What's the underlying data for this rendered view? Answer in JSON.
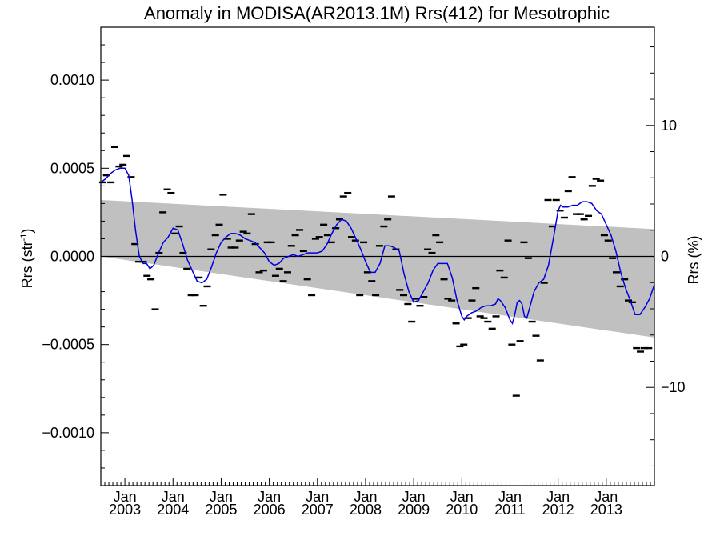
{
  "chart_data": {
    "type": "line",
    "title": "Anomaly in MODISA(AR2013.1M) Rrs(412) for Mesotrophic",
    "ylabel_left": "Rrs (str",
    "ylabel_left_sup": "-1",
    "ylabel_left_close": ")",
    "ylabel_right": "Rrs (%)",
    "x_range": [
      2002.5,
      2014.0
    ],
    "y_range": [
      -0.0013,
      0.0013
    ],
    "y2_range": [
      -17.5,
      17.5
    ],
    "y_ticks": [
      -0.001,
      -0.0005,
      0.0,
      0.0005,
      0.001
    ],
    "y_tick_labels": [
      "−0.0010",
      "−0.0005",
      "0.0000",
      "0.0005",
      "0.0010"
    ],
    "y2_ticks": [
      -10,
      0,
      10
    ],
    "y2_tick_labels": [
      "−10",
      "0",
      "10"
    ],
    "x_ticks": [
      {
        "x": 2003.0,
        "month": "Jan",
        "year": "2003"
      },
      {
        "x": 2004.0,
        "month": "Jan",
        "year": "2004"
      },
      {
        "x": 2005.0,
        "month": "Jan",
        "year": "2005"
      },
      {
        "x": 2006.0,
        "month": "Jan",
        "year": "2006"
      },
      {
        "x": 2007.0,
        "month": "Jan",
        "year": "2007"
      },
      {
        "x": 2008.0,
        "month": "Jan",
        "year": "2008"
      },
      {
        "x": 2009.0,
        "month": "Jan",
        "year": "2009"
      },
      {
        "x": 2010.0,
        "month": "Jan",
        "year": "2010"
      },
      {
        "x": 2011.0,
        "month": "Jan",
        "year": "2011"
      },
      {
        "x": 2012.0,
        "month": "Jan",
        "year": "2012"
      },
      {
        "x": 2013.0,
        "month": "Jan",
        "year": "2013"
      }
    ],
    "zero_line": 0.0,
    "band": {
      "color": "#c0c0c0",
      "upper": [
        [
          2002.5,
          0.00032
        ],
        [
          2014.0,
          0.000155
        ]
      ],
      "lower": [
        [
          2002.5,
          0.0
        ],
        [
          2014.0,
          -0.00046
        ]
      ]
    },
    "series": [
      {
        "type": "scatter",
        "marker": "dash",
        "color": "#000000",
        "points": [
          [
            2002.54,
            0.00042
          ],
          [
            2002.62,
            0.00046
          ],
          [
            2002.71,
            0.00042
          ],
          [
            2002.79,
            0.00062
          ],
          [
            2002.88,
            0.00051
          ],
          [
            2002.96,
            0.00052
          ],
          [
            2003.04,
            0.00057
          ],
          [
            2003.13,
            0.00045
          ],
          [
            2003.21,
            7e-05
          ],
          [
            2003.29,
            -3e-05
          ],
          [
            2003.38,
            -3e-05
          ],
          [
            2003.46,
            -0.00011
          ],
          [
            2003.54,
            -0.00013
          ],
          [
            2003.63,
            -0.0003
          ],
          [
            2003.71,
            2e-05
          ],
          [
            2003.79,
            0.00025
          ],
          [
            2003.88,
            0.00038
          ],
          [
            2003.96,
            0.00036
          ],
          [
            2004.04,
            0.00013
          ],
          [
            2004.13,
            0.00017
          ],
          [
            2004.21,
            2e-05
          ],
          [
            2004.29,
            -7e-05
          ],
          [
            2004.38,
            -0.00022
          ],
          [
            2004.46,
            -0.00022
          ],
          [
            2004.54,
            -0.00012
          ],
          [
            2004.63,
            -0.00028
          ],
          [
            2004.71,
            -0.00017
          ],
          [
            2004.79,
            4e-05
          ],
          [
            2004.88,
            0.00012
          ],
          [
            2004.96,
            0.00018
          ],
          [
            2005.04,
            0.00035
          ],
          [
            2005.13,
            0.0001
          ],
          [
            2005.21,
            5e-05
          ],
          [
            2005.29,
            5e-05
          ],
          [
            2005.38,
            9e-05
          ],
          [
            2005.46,
            0.00014
          ],
          [
            2005.54,
            0.00013
          ],
          [
            2005.63,
            0.00024
          ],
          [
            2005.71,
            7e-05
          ],
          [
            2005.79,
            -9e-05
          ],
          [
            2005.88,
            -8e-05
          ],
          [
            2005.96,
            8e-05
          ],
          [
            2006.04,
            8e-05
          ],
          [
            2006.13,
            -0.00011
          ],
          [
            2006.21,
            -7e-05
          ],
          [
            2006.29,
            -0.00014
          ],
          [
            2006.38,
            -9e-05
          ],
          [
            2006.46,
            6e-05
          ],
          [
            2006.54,
            0.00012
          ],
          [
            2006.63,
            0.00015
          ],
          [
            2006.71,
            3e-05
          ],
          [
            2006.79,
            -0.00013
          ],
          [
            2006.88,
            -0.00022
          ],
          [
            2006.96,
            0.0001
          ],
          [
            2007.04,
            0.00011
          ],
          [
            2007.13,
            0.00018
          ],
          [
            2007.21,
            0.00012
          ],
          [
            2007.29,
            8e-05
          ],
          [
            2007.38,
            0.00016
          ],
          [
            2007.46,
            0.00021
          ],
          [
            2007.54,
            0.00034
          ],
          [
            2007.63,
            0.00036
          ],
          [
            2007.71,
            0.00011
          ],
          [
            2007.79,
            9e-05
          ],
          [
            2007.88,
            -0.00022
          ],
          [
            2007.96,
            8e-05
          ],
          [
            2008.04,
            -9e-05
          ],
          [
            2008.13,
            -0.00014
          ],
          [
            2008.21,
            -0.00022
          ],
          [
            2008.29,
            6e-05
          ],
          [
            2008.38,
            0.00017
          ],
          [
            2008.46,
            0.00021
          ],
          [
            2008.54,
            0.00034
          ],
          [
            2008.63,
            4e-05
          ],
          [
            2008.71,
            -0.00019
          ],
          [
            2008.79,
            -0.00022
          ],
          [
            2008.88,
            -0.00027
          ],
          [
            2008.96,
            -0.00037
          ],
          [
            2009.04,
            -0.00024
          ],
          [
            2009.13,
            -0.00028
          ],
          [
            2009.21,
            -0.00023
          ],
          [
            2009.29,
            4e-05
          ],
          [
            2009.38,
            2e-05
          ],
          [
            2009.46,
            0.00012
          ],
          [
            2009.54,
            8e-05
          ],
          [
            2009.63,
            -0.00013
          ],
          [
            2009.71,
            -0.00024
          ],
          [
            2009.79,
            -0.00025
          ],
          [
            2009.88,
            -0.00038
          ],
          [
            2009.96,
            -0.00051
          ],
          [
            2010.04,
            -0.0005
          ],
          [
            2010.13,
            -0.00035
          ],
          [
            2010.21,
            -0.00025
          ],
          [
            2010.29,
            -0.00018
          ],
          [
            2010.38,
            -0.00034
          ],
          [
            2010.46,
            -0.00035
          ],
          [
            2010.54,
            -0.00037
          ],
          [
            2010.63,
            -0.00041
          ],
          [
            2010.71,
            -0.00034
          ],
          [
            2010.79,
            -8e-05
          ],
          [
            2010.88,
            -0.00012
          ],
          [
            2010.96,
            9e-05
          ],
          [
            2011.04,
            -0.0005
          ],
          [
            2011.13,
            -0.00079
          ],
          [
            2011.21,
            -0.00048
          ],
          [
            2011.29,
            8e-05
          ],
          [
            2011.38,
            -1e-05
          ],
          [
            2011.46,
            -0.00037
          ],
          [
            2011.54,
            -0.00045
          ],
          [
            2011.63,
            -0.00059
          ],
          [
            2011.71,
            -0.00015
          ],
          [
            2011.79,
            0.00032
          ],
          [
            2011.88,
            0.00017
          ],
          [
            2011.96,
            0.00032
          ],
          [
            2012.04,
            0.00026
          ],
          [
            2012.13,
            0.00022
          ],
          [
            2012.21,
            0.00037
          ],
          [
            2012.29,
            0.00045
          ],
          [
            2012.38,
            0.00024
          ],
          [
            2012.46,
            0.00024
          ],
          [
            2012.54,
            0.00021
          ],
          [
            2012.63,
            0.00023
          ],
          [
            2012.71,
            0.0004
          ],
          [
            2012.79,
            0.00044
          ],
          [
            2012.88,
            0.00043
          ],
          [
            2012.96,
            0.00012
          ],
          [
            2013.04,
            9e-05
          ],
          [
            2013.13,
            -1e-05
          ],
          [
            2013.21,
            -9e-05
          ],
          [
            2013.29,
            -0.00017
          ],
          [
            2013.38,
            -0.00013
          ],
          [
            2013.46,
            -0.00025
          ],
          [
            2013.54,
            -0.00026
          ],
          [
            2013.63,
            -0.00052
          ],
          [
            2013.71,
            -0.00054
          ],
          [
            2013.79,
            -0.00052
          ],
          [
            2013.88,
            -0.00052
          ]
        ]
      },
      {
        "type": "line",
        "color": "#0000dd",
        "points": [
          [
            2002.5,
            0.00042
          ],
          [
            2002.6,
            0.00044
          ],
          [
            2002.7,
            0.00047
          ],
          [
            2002.8,
            0.00049
          ],
          [
            2002.9,
            0.0005
          ],
          [
            2003.0,
            0.0005
          ],
          [
            2003.08,
            0.00046
          ],
          [
            2003.15,
            0.00032
          ],
          [
            2003.22,
            0.00015
          ],
          [
            2003.3,
            0.0
          ],
          [
            2003.38,
            -4e-05
          ],
          [
            2003.45,
            -4e-05
          ],
          [
            2003.52,
            -7e-05
          ],
          [
            2003.6,
            -5e-05
          ],
          [
            2003.7,
            2e-05
          ],
          [
            2003.8,
            8e-05
          ],
          [
            2003.9,
            0.00011
          ],
          [
            2004.0,
            0.00016
          ],
          [
            2004.1,
            0.00015
          ],
          [
            2004.2,
            7e-05
          ],
          [
            2004.3,
            -2e-05
          ],
          [
            2004.4,
            -8e-05
          ],
          [
            2004.5,
            -0.00014
          ],
          [
            2004.6,
            -0.00015
          ],
          [
            2004.7,
            -0.00013
          ],
          [
            2004.8,
            -6e-05
          ],
          [
            2004.9,
            2e-05
          ],
          [
            2005.0,
            8e-05
          ],
          [
            2005.1,
            0.00011
          ],
          [
            2005.2,
            0.00013
          ],
          [
            2005.3,
            0.00013
          ],
          [
            2005.4,
            0.00012
          ],
          [
            2005.5,
            0.0001
          ],
          [
            2005.6,
            9e-05
          ],
          [
            2005.7,
            8e-05
          ],
          [
            2005.8,
            5e-05
          ],
          [
            2005.9,
            2e-05
          ],
          [
            2006.0,
            -3e-05
          ],
          [
            2006.1,
            -5e-05
          ],
          [
            2006.2,
            -4e-05
          ],
          [
            2006.3,
            -1e-05
          ],
          [
            2006.4,
            0.0
          ],
          [
            2006.5,
            1e-05
          ],
          [
            2006.6,
            0.0
          ],
          [
            2006.7,
            1e-05
          ],
          [
            2006.8,
            2e-05
          ],
          [
            2006.9,
            2e-05
          ],
          [
            2007.0,
            2e-05
          ],
          [
            2007.1,
            3e-05
          ],
          [
            2007.2,
            7e-05
          ],
          [
            2007.3,
            0.00013
          ],
          [
            2007.4,
            0.00018
          ],
          [
            2007.5,
            0.00021
          ],
          [
            2007.6,
            0.0002
          ],
          [
            2007.7,
            0.00016
          ],
          [
            2007.8,
            0.0001
          ],
          [
            2007.9,
            4e-05
          ],
          [
            2008.0,
            -3e-05
          ],
          [
            2008.1,
            -9e-05
          ],
          [
            2008.2,
            -9e-05
          ],
          [
            2008.3,
            -4e-05
          ],
          [
            2008.4,
            6e-05
          ],
          [
            2008.5,
            6e-05
          ],
          [
            2008.6,
            5e-05
          ],
          [
            2008.7,
            3e-05
          ],
          [
            2008.8,
            -0.0001
          ],
          [
            2008.9,
            -0.0002
          ],
          [
            2009.0,
            -0.00026
          ],
          [
            2009.1,
            -0.00025
          ],
          [
            2009.2,
            -0.0002
          ],
          [
            2009.3,
            -0.00015
          ],
          [
            2009.4,
            -8e-05
          ],
          [
            2009.5,
            -4e-05
          ],
          [
            2009.6,
            -4e-05
          ],
          [
            2009.7,
            -4e-05
          ],
          [
            2009.8,
            -0.00012
          ],
          [
            2009.9,
            -0.00025
          ],
          [
            2010.0,
            -0.00034
          ],
          [
            2010.05,
            -0.00036
          ],
          [
            2010.1,
            -0.00034
          ],
          [
            2010.2,
            -0.00032
          ],
          [
            2010.3,
            -0.00031
          ],
          [
            2010.4,
            -0.00029
          ],
          [
            2010.5,
            -0.00028
          ],
          [
            2010.6,
            -0.00028
          ],
          [
            2010.7,
            -0.00027
          ],
          [
            2010.75,
            -0.00024
          ],
          [
            2010.8,
            -0.00025
          ],
          [
            2010.9,
            -0.00029
          ],
          [
            2011.0,
            -0.00036
          ],
          [
            2011.05,
            -0.00038
          ],
          [
            2011.1,
            -0.00033
          ],
          [
            2011.15,
            -0.00026
          ],
          [
            2011.2,
            -0.00025
          ],
          [
            2011.25,
            -0.00027
          ],
          [
            2011.3,
            -0.00034
          ],
          [
            2011.35,
            -0.00035
          ],
          [
            2011.4,
            -0.0003
          ],
          [
            2011.5,
            -0.0002
          ],
          [
            2011.6,
            -0.00015
          ],
          [
            2011.7,
            -0.00013
          ],
          [
            2011.8,
            -5e-05
          ],
          [
            2011.9,
            0.0001
          ],
          [
            2012.0,
            0.00026
          ],
          [
            2012.05,
            0.00029
          ],
          [
            2012.1,
            0.00028
          ],
          [
            2012.2,
            0.00028
          ],
          [
            2012.3,
            0.00029
          ],
          [
            2012.4,
            0.00029
          ],
          [
            2012.5,
            0.00031
          ],
          [
            2012.6,
            0.00031
          ],
          [
            2012.7,
            0.0003
          ],
          [
            2012.8,
            0.00026
          ],
          [
            2012.9,
            0.00024
          ],
          [
            2013.0,
            0.00018
          ],
          [
            2013.1,
            0.00012
          ],
          [
            2013.2,
            3e-05
          ],
          [
            2013.3,
            -9e-05
          ],
          [
            2013.4,
            -0.00018
          ],
          [
            2013.5,
            -0.00025
          ],
          [
            2013.6,
            -0.00033
          ],
          [
            2013.7,
            -0.00033
          ],
          [
            2013.8,
            -0.00029
          ],
          [
            2013.9,
            -0.00024
          ],
          [
            2014.0,
            -0.00016
          ]
        ]
      }
    ]
  }
}
